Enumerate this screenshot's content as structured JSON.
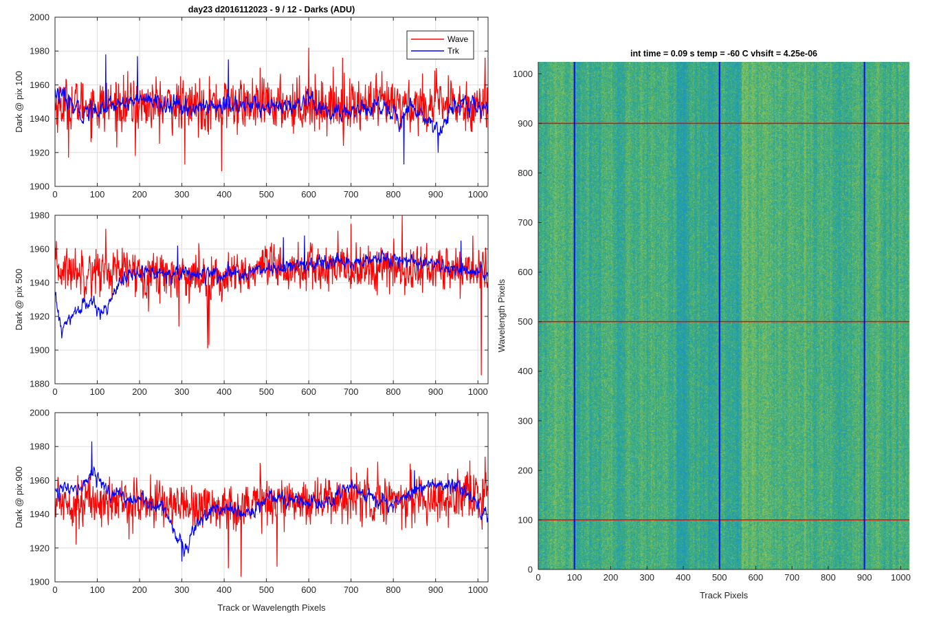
{
  "figure_title": "day23 d2016112023 - 9 / 12 - Darks (ADU)",
  "colors": {
    "wave": "#ff0000",
    "trk": "#0000ff",
    "grid": "#dedede",
    "axis": "#262626"
  },
  "legend": {
    "entries": [
      "Wave",
      "Trk"
    ],
    "placement": "top-right"
  },
  "chart_data": [
    {
      "type": "line",
      "ylabel": "Dark @ pix 100",
      "xlabel": "",
      "xlim": [
        0,
        1024
      ],
      "ylim": [
        1900,
        2000
      ],
      "xticks": [
        0,
        100,
        200,
        300,
        400,
        500,
        600,
        700,
        800,
        900,
        1000
      ],
      "yticks": [
        1900,
        1920,
        1940,
        1960,
        1980,
        2000
      ],
      "grid": true,
      "series": [
        {
          "name": "Wave",
          "color": "#ff0000",
          "mean": 1948,
          "noise": 9,
          "drift": [
            [
              0,
              0
            ],
            [
              1024,
              0
            ]
          ],
          "spikes": [
            [
              600,
              1982
            ],
            [
              680,
              1976
            ],
            [
              1017,
              1976
            ],
            [
              394,
              1909
            ],
            [
              307,
              1913
            ],
            [
              1021,
              1935
            ],
            [
              32,
              1917
            ],
            [
              190,
              1918
            ]
          ]
        },
        {
          "name": "Trk",
          "color": "#0000ff",
          "mean": 1948,
          "noise": 5,
          "drift": [
            [
              0,
              8
            ],
            [
              60,
              -5
            ],
            [
              130,
              0
            ],
            [
              200,
              4
            ],
            [
              300,
              -2
            ],
            [
              400,
              0
            ],
            [
              500,
              0
            ],
            [
              560,
              -2
            ],
            [
              600,
              2
            ],
            [
              650,
              -6
            ],
            [
              700,
              -3
            ],
            [
              780,
              0
            ],
            [
              820,
              -10
            ],
            [
              840,
              0
            ],
            [
              880,
              -8
            ],
            [
              910,
              -15
            ],
            [
              940,
              0
            ],
            [
              1024,
              -2
            ]
          ],
          "spikes": [
            [
              120,
              1978
            ],
            [
              195,
              1977
            ],
            [
              825,
              1913
            ],
            [
              906,
              1920
            ],
            [
              410,
              1975
            ]
          ]
        }
      ]
    },
    {
      "type": "line",
      "ylabel": "Dark @ pix 500",
      "xlabel": "",
      "xlim": [
        0,
        1024
      ],
      "ylim": [
        1880,
        1980
      ],
      "xticks": [
        0,
        100,
        200,
        300,
        400,
        500,
        600,
        700,
        800,
        900,
        1000
      ],
      "yticks": [
        1880,
        1900,
        1920,
        1940,
        1960,
        1980
      ],
      "grid": true,
      "series": [
        {
          "name": "Wave",
          "color": "#ff0000",
          "mean": 1948,
          "noise": 8,
          "drift": [
            [
              0,
              0
            ],
            [
              300,
              -3
            ],
            [
              400,
              -6
            ],
            [
              500,
              0
            ],
            [
              1024,
              0
            ]
          ],
          "spikes": [
            [
              821,
              1980
            ],
            [
              1008,
              1885
            ],
            [
              361,
              1901
            ],
            [
              364,
              1903
            ],
            [
              120,
              1972
            ],
            [
              293,
              1914
            ],
            [
              700,
              1975
            ]
          ]
        },
        {
          "name": "Trk",
          "color": "#0000ff",
          "mean": 1946,
          "noise": 4,
          "drift": [
            [
              0,
              -14
            ],
            [
              15,
              -34
            ],
            [
              30,
              -30
            ],
            [
              60,
              -20
            ],
            [
              90,
              -18
            ],
            [
              110,
              -26
            ],
            [
              150,
              -5
            ],
            [
              200,
              0
            ],
            [
              300,
              0
            ],
            [
              400,
              -2
            ],
            [
              500,
              2
            ],
            [
              600,
              4
            ],
            [
              700,
              6
            ],
            [
              800,
              8
            ],
            [
              900,
              4
            ],
            [
              1024,
              -2
            ]
          ],
          "spikes": [
            [
              16,
              1907
            ],
            [
              290,
              1962
            ],
            [
              540,
              1967
            ],
            [
              590,
              1968
            ],
            [
              960,
              1965
            ]
          ]
        }
      ]
    },
    {
      "type": "line",
      "ylabel": "Dark @ pix 900",
      "xlabel": "Track or Wavelength Pixels",
      "xlim": [
        0,
        1024
      ],
      "ylim": [
        1900,
        2000
      ],
      "xticks": [
        0,
        100,
        200,
        300,
        400,
        500,
        600,
        700,
        800,
        900,
        1000
      ],
      "yticks": [
        1900,
        1920,
        1940,
        1960,
        1980,
        2000
      ],
      "grid": true,
      "series": [
        {
          "name": "Wave",
          "color": "#ff0000",
          "mean": 1948,
          "noise": 8,
          "drift": [
            [
              0,
              0
            ],
            [
              300,
              -2
            ],
            [
              400,
              -4
            ],
            [
              500,
              0
            ],
            [
              1024,
              2
            ]
          ],
          "spikes": [
            [
              1017,
              1974
            ],
            [
              440,
              1903
            ],
            [
              410,
              1908
            ],
            [
              525,
              1909
            ],
            [
              50,
              1922
            ],
            [
              700,
              1968
            ]
          ]
        },
        {
          "name": "Trk",
          "color": "#0000ff",
          "mean": 1948,
          "noise": 4,
          "drift": [
            [
              0,
              8
            ],
            [
              50,
              5
            ],
            [
              90,
              17
            ],
            [
              130,
              4
            ],
            [
              200,
              0
            ],
            [
              260,
              -4
            ],
            [
              290,
              -22
            ],
            [
              310,
              -30
            ],
            [
              330,
              -14
            ],
            [
              380,
              -4
            ],
            [
              450,
              -8
            ],
            [
              480,
              -4
            ],
            [
              500,
              4
            ],
            [
              560,
              0
            ],
            [
              640,
              -2
            ],
            [
              700,
              8
            ],
            [
              800,
              -2
            ],
            [
              880,
              10
            ],
            [
              960,
              8
            ],
            [
              1024,
              -8
            ]
          ],
          "spikes": [
            [
              87,
              1983
            ],
            [
              300,
              1912
            ],
            [
              850,
              1966
            ]
          ]
        }
      ]
    },
    {
      "type": "heatmap",
      "title": "int time = 0.09 s    temp = -60 C    vhsift = 4.25e-06",
      "xlabel": "Track Pixels",
      "ylabel": "Wavelength Pixels",
      "xlim": [
        0,
        1024
      ],
      "ylim": [
        0,
        1024
      ],
      "xticks": [
        0,
        100,
        200,
        300,
        400,
        500,
        600,
        700,
        800,
        900,
        1000
      ],
      "yticks": [
        0,
        100,
        200,
        300,
        400,
        500,
        600,
        700,
        800,
        900,
        1000
      ],
      "colormap": "parula",
      "vertical_lines": {
        "color": "#0000ff",
        "x": [
          100,
          500,
          900
        ]
      },
      "horizontal_lines": {
        "color": "#ff0000",
        "y": [
          100,
          500,
          900
        ]
      }
    }
  ]
}
